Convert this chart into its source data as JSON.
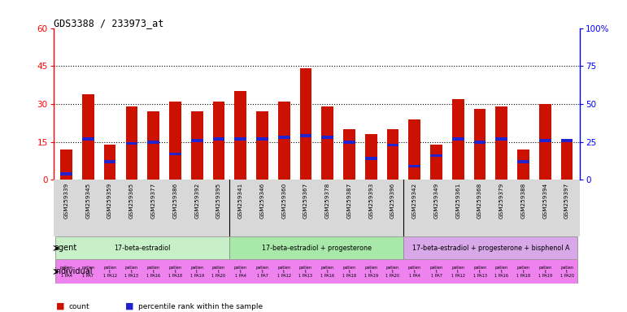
{
  "title": "GDS3388 / 233973_at",
  "gsm_labels": [
    "GSM259339",
    "GSM259345",
    "GSM259359",
    "GSM259365",
    "GSM259377",
    "GSM259386",
    "GSM259392",
    "GSM259395",
    "GSM259341",
    "GSM259346",
    "GSM259360",
    "GSM259367",
    "GSM259378",
    "GSM259387",
    "GSM259393",
    "GSM259396",
    "GSM259342",
    "GSM259349",
    "GSM259361",
    "GSM259368",
    "GSM259379",
    "GSM259388",
    "GSM259394",
    "GSM259397"
  ],
  "count_values": [
    12,
    34,
    14,
    29,
    27,
    31,
    27,
    31,
    35,
    27,
    31,
    44,
    29,
    20,
    18,
    20,
    24,
    14,
    32,
    28,
    29,
    12,
    30,
    16
  ],
  "percentile_values": [
    4,
    27,
    12,
    24,
    25,
    17,
    26,
    27,
    27,
    27,
    28,
    29,
    28,
    25,
    14,
    23,
    9,
    16,
    27,
    25,
    27,
    12,
    26,
    26
  ],
  "bar_color": "#cc1100",
  "percentile_color": "#2222cc",
  "ylim_left": [
    0,
    60
  ],
  "ylim_right": [
    0,
    100
  ],
  "yticks_left": [
    0,
    15,
    30,
    45,
    60
  ],
  "yticks_right": [
    0,
    25,
    50,
    75,
    100
  ],
  "ytick_labels_right": [
    "0",
    "25",
    "50",
    "75",
    "100%"
  ],
  "agent_groups": [
    {
      "label": "17-beta-estradiol",
      "start": 0,
      "end": 8,
      "color": "#c8f0c8"
    },
    {
      "label": "17-beta-estradiol + progesterone",
      "start": 8,
      "end": 16,
      "color": "#a8e8a8"
    },
    {
      "label": "17-beta-estradiol + progesterone + bisphenol A",
      "start": 16,
      "end": 24,
      "color": "#d8a8e8"
    }
  ],
  "individual_row_color": "#ee82ee",
  "bar_width": 0.55,
  "background_color": "#ffffff",
  "dotted_lines": [
    15,
    30,
    45
  ],
  "xticklabel_bg": "#d8d8d8"
}
